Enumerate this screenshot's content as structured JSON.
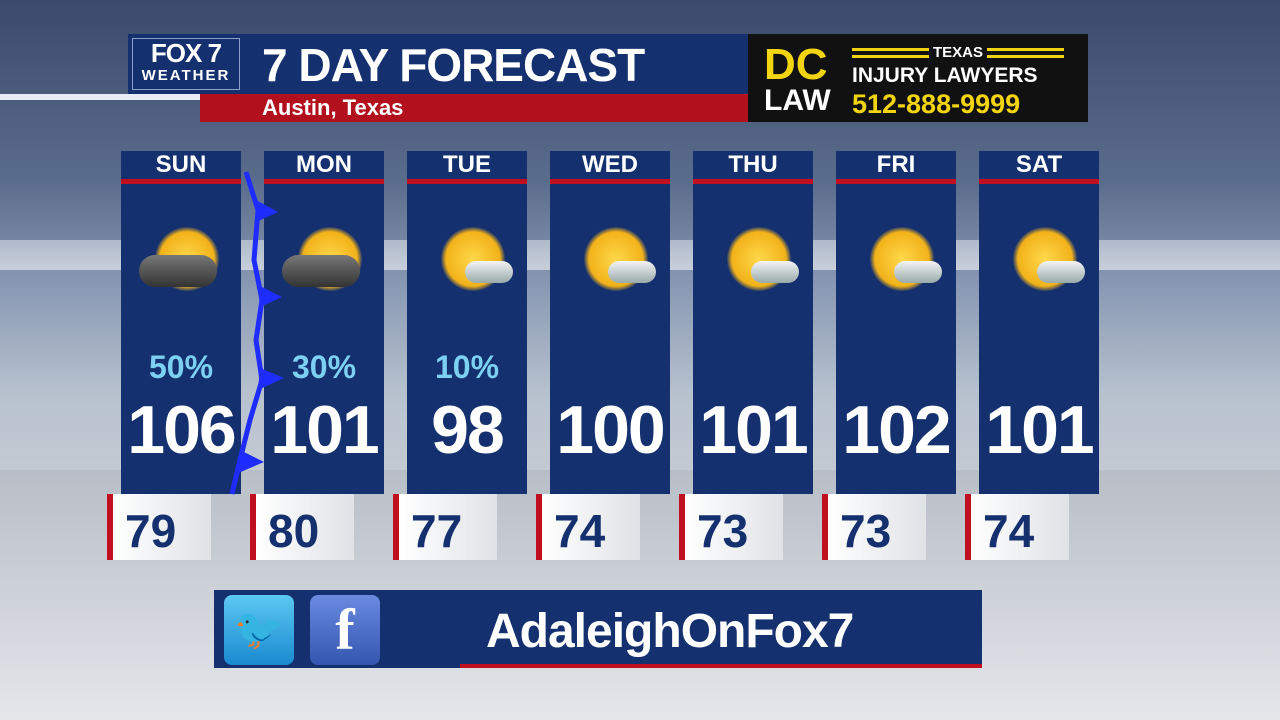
{
  "header": {
    "logo_main": "FOX 7",
    "logo_sub": "WEATHER",
    "title": "7 DAY FORECAST",
    "location": "Austin, Texas"
  },
  "ad": {
    "dc": "DC",
    "law": "LAW",
    "state": "TEXAS",
    "tagline": "INJURY LAWYERS",
    "phone": "512-888-9999"
  },
  "days": [
    {
      "day": "SUN",
      "icon": "thunderstorm-partly-sunny",
      "precip": "50%",
      "high": "106",
      "low": "79"
    },
    {
      "day": "MON",
      "icon": "thunderstorm-partly-sunny",
      "precip": "30%",
      "high": "101",
      "low": "80"
    },
    {
      "day": "TUE",
      "icon": "mostly-sunny",
      "precip": "10%",
      "high": "98",
      "low": "77"
    },
    {
      "day": "WED",
      "icon": "mostly-sunny",
      "precip": "",
      "high": "100",
      "low": "74"
    },
    {
      "day": "THU",
      "icon": "mostly-sunny",
      "precip": "",
      "high": "101",
      "low": "73"
    },
    {
      "day": "FRI",
      "icon": "mostly-sunny",
      "precip": "",
      "high": "102",
      "low": "73"
    },
    {
      "day": "SAT",
      "icon": "mostly-sunny",
      "precip": "",
      "high": "101",
      "low": "74"
    }
  ],
  "social": {
    "handle": "AdaleighOnFox7",
    "icons": [
      "twitter-icon",
      "facebook-icon"
    ],
    "twitter_glyph": "🐦",
    "facebook_glyph": "f"
  },
  "colors": {
    "navy": "#14306e",
    "red": "#c01020",
    "precip": "#7cd0f2",
    "ad_yellow": "#f2d411",
    "cold_front": "#1f2cff"
  }
}
